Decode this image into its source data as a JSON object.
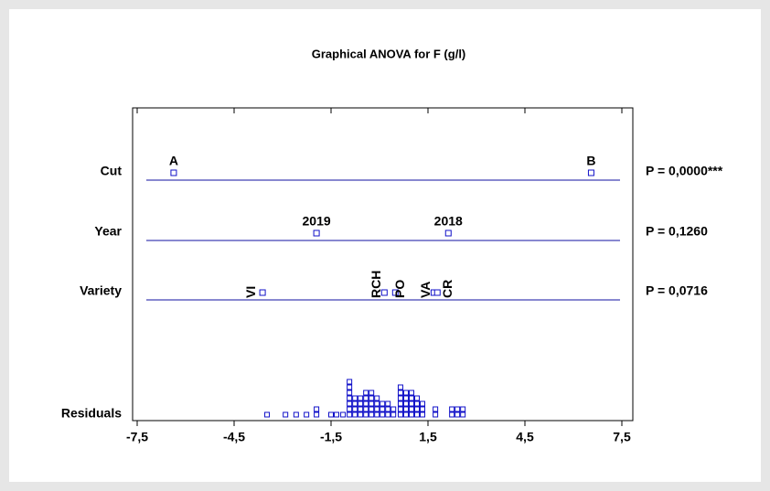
{
  "chart_data": {
    "type": "graphical-anova",
    "title": "Graphical ANOVA for F (g/l)",
    "xlim": [
      -7.5,
      7.5
    ],
    "xticks": [
      {
        "value": -7.5,
        "label": "-7,5"
      },
      {
        "value": -4.5,
        "label": "-4,5"
      },
      {
        "value": -1.5,
        "label": "-1,5"
      },
      {
        "value": 1.5,
        "label": "1,5"
      },
      {
        "value": 4.5,
        "label": "4,5"
      },
      {
        "value": 7.5,
        "label": "7,5"
      }
    ],
    "color": "#1010c8",
    "rows": [
      {
        "name": "Cut",
        "p_label": "P = 0,0000***",
        "labels": [
          "A",
          "B"
        ],
        "values": [
          -6.37,
          6.55
        ]
      },
      {
        "name": "Year",
        "p_label": "P = 0,1260",
        "labels": [
          "2019",
          "2018"
        ],
        "values": [
          -1.95,
          2.13
        ]
      },
      {
        "name": "Variety",
        "p_label": "P = 0,0716",
        "labels": [
          "VI",
          "RCH",
          "PO",
          "VA",
          "CR"
        ],
        "values": [
          -3.62,
          0.15,
          0.49,
          1.68,
          1.79
        ]
      }
    ],
    "residuals": {
      "name": "Residuals",
      "values": [
        -3.48,
        -2.91,
        -2.58,
        -2.26,
        -1.95,
        -1.95,
        -1.5,
        -1.33,
        -1.13,
        -0.93,
        -0.93,
        -0.93,
        -0.93,
        -0.93,
        -0.93,
        -0.93,
        -0.76,
        -0.76,
        -0.76,
        -0.76,
        -0.59,
        -0.59,
        -0.59,
        -0.59,
        -0.42,
        -0.42,
        -0.42,
        -0.42,
        -0.42,
        -0.25,
        -0.25,
        -0.25,
        -0.25,
        -0.25,
        -0.08,
        -0.08,
        -0.08,
        -0.08,
        0.09,
        0.09,
        0.09,
        0.26,
        0.26,
        0.26,
        0.43,
        0.43,
        0.65,
        0.65,
        0.65,
        0.65,
        0.65,
        0.65,
        0.82,
        0.82,
        0.82,
        0.82,
        0.82,
        0.99,
        0.99,
        0.99,
        0.99,
        0.99,
        1.16,
        1.16,
        1.16,
        1.16,
        1.33,
        1.33,
        1.33,
        1.73,
        1.73,
        2.24,
        2.24,
        2.41,
        2.41,
        2.58,
        2.58
      ]
    }
  }
}
